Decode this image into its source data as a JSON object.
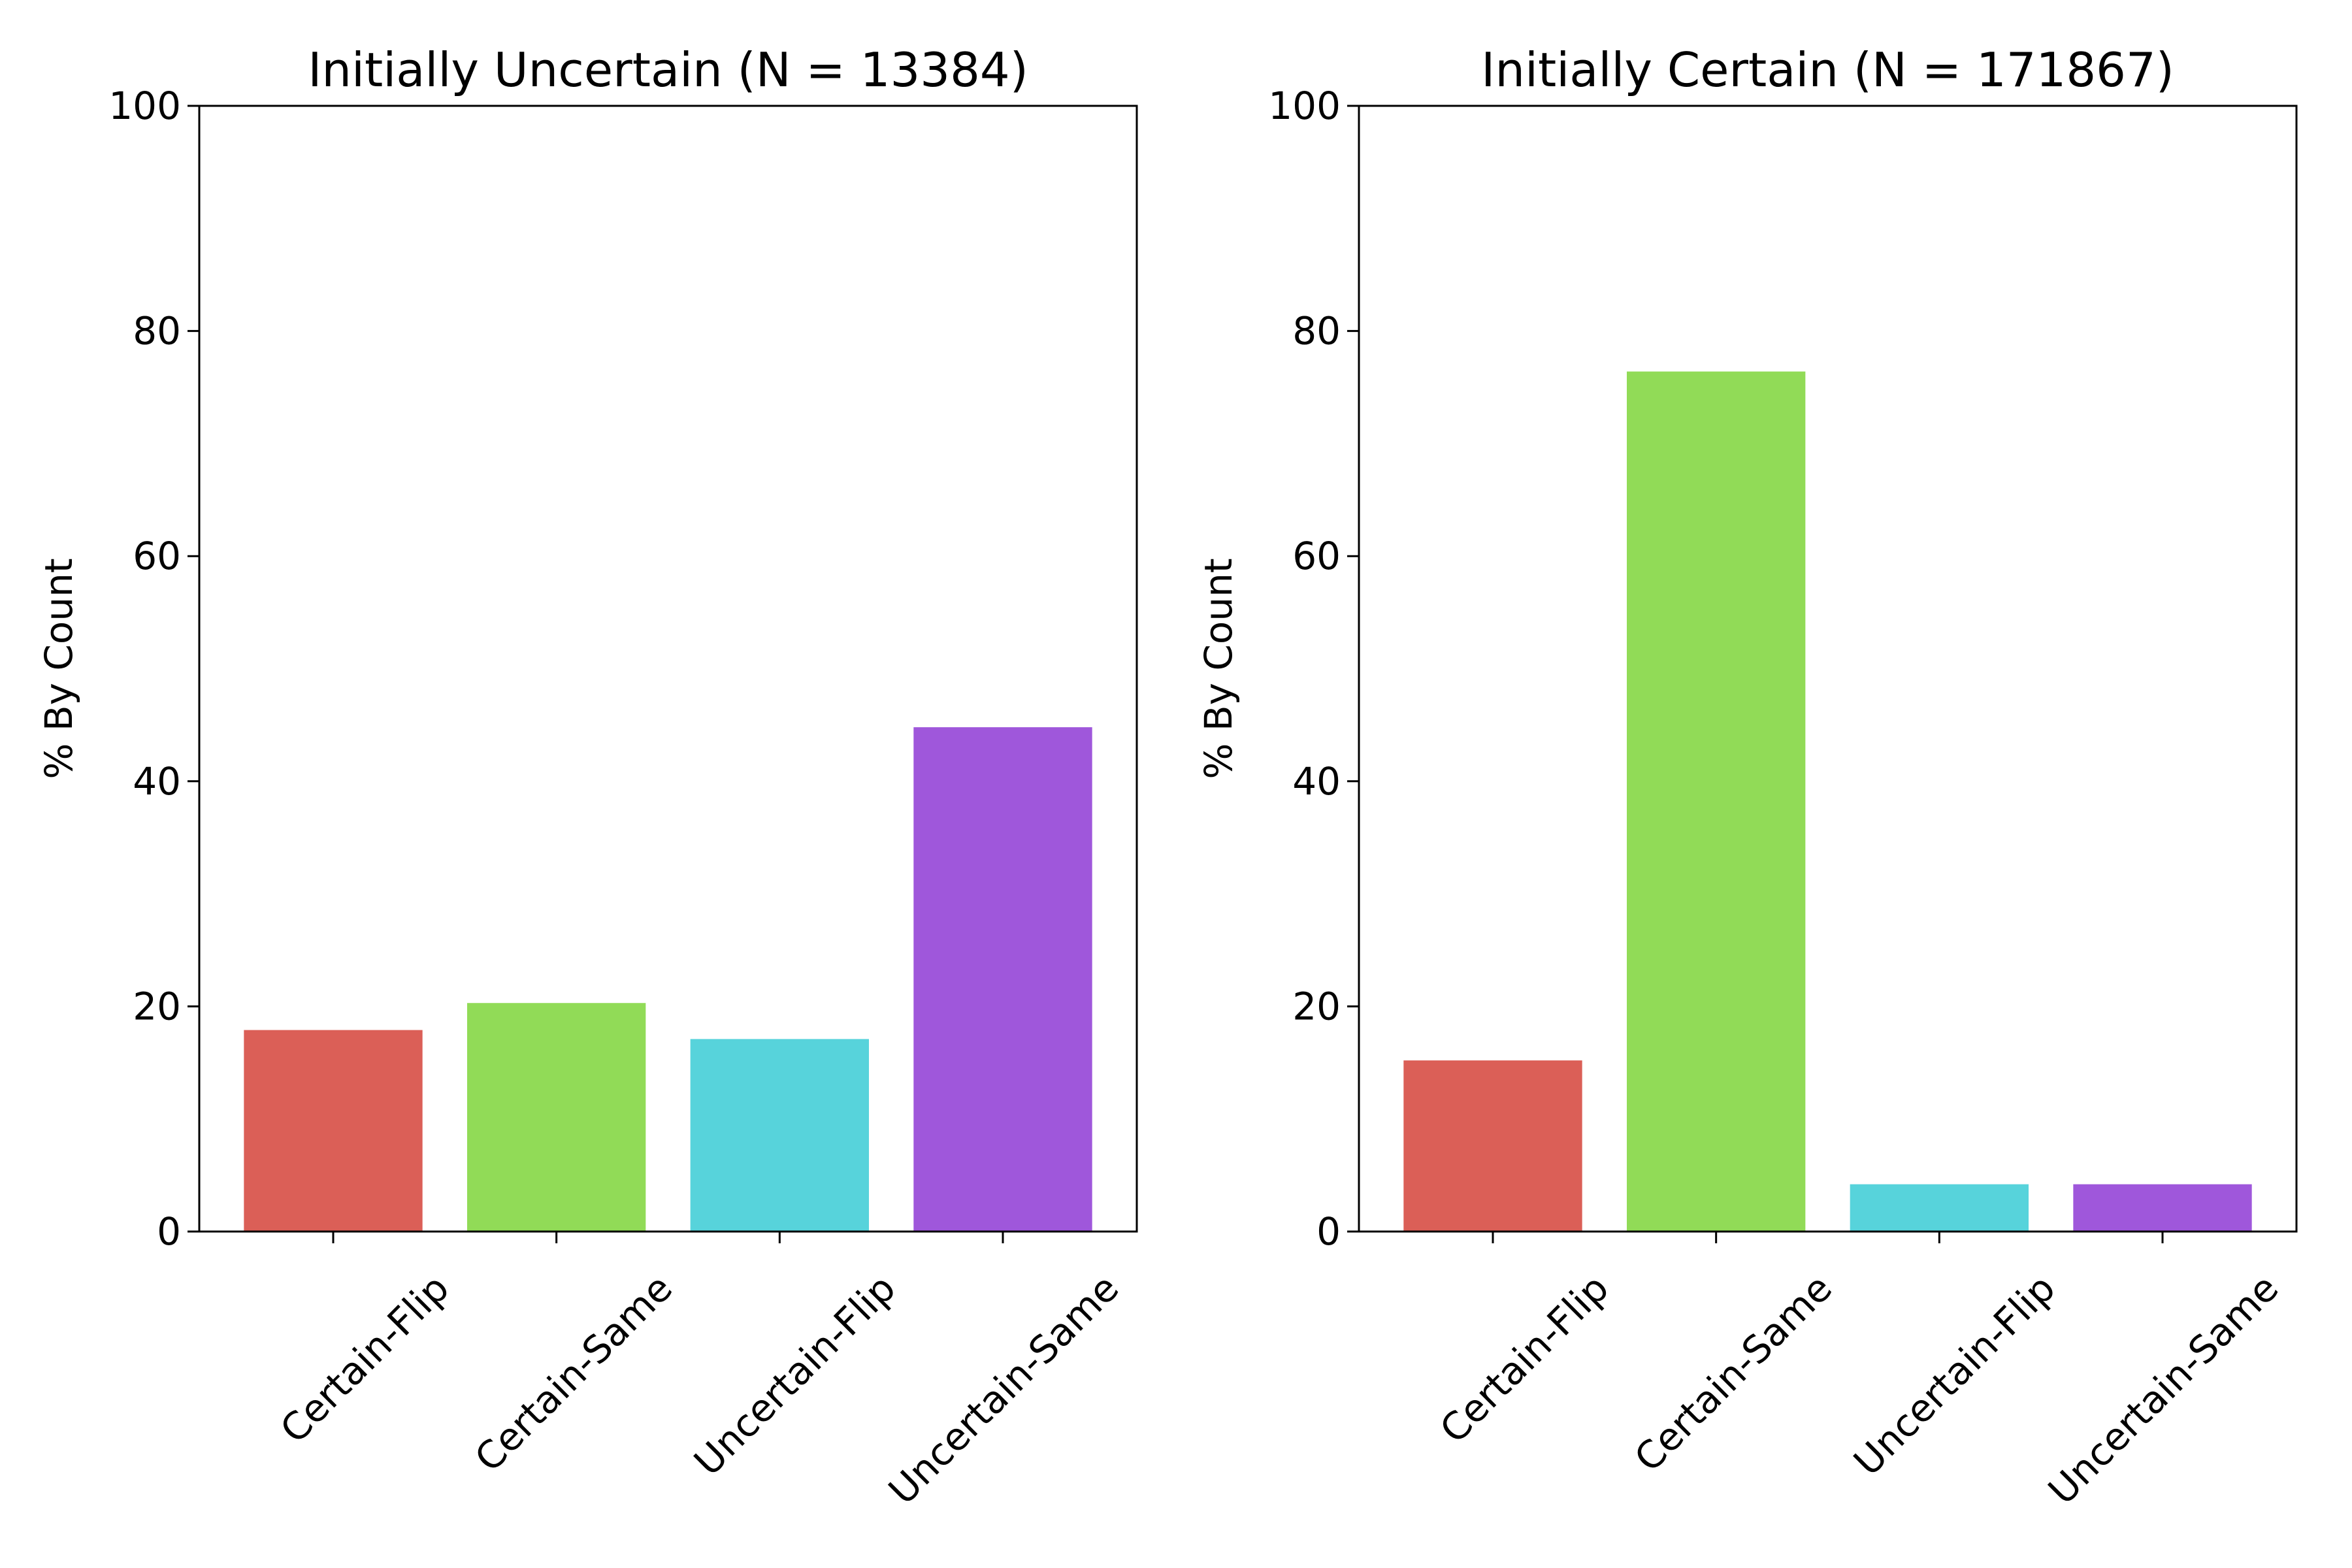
{
  "chart_data": [
    {
      "type": "bar",
      "title": "Initially Uncertain (N = 13384)",
      "ylabel": "% By Count",
      "xlabel": "",
      "ylim": [
        0,
        100
      ],
      "yticks": [
        "0",
        "20",
        "40",
        "60",
        "80",
        "100"
      ],
      "categories": [
        "Certain-Flip",
        "Certain-Same",
        "Uncertain-Flip",
        "Uncertain-Same"
      ],
      "values": [
        17.9,
        20.3,
        17.1,
        44.8
      ],
      "colors": [
        "#db5f57",
        "#91db57",
        "#57d3db",
        "#9f57db"
      ]
    },
    {
      "type": "bar",
      "title": "Initially Certain (N = 171867)",
      "ylabel": "% By Count",
      "xlabel": "",
      "ylim": [
        0,
        100
      ],
      "yticks": [
        "0",
        "20",
        "40",
        "60",
        "80",
        "100"
      ],
      "categories": [
        "Certain-Flip",
        "Certain-Same",
        "Uncertain-Flip",
        "Uncertain-Same"
      ],
      "values": [
        15.2,
        76.4,
        4.2,
        4.2
      ],
      "colors": [
        "#db5f57",
        "#91db57",
        "#57d3db",
        "#9f57db"
      ]
    }
  ]
}
